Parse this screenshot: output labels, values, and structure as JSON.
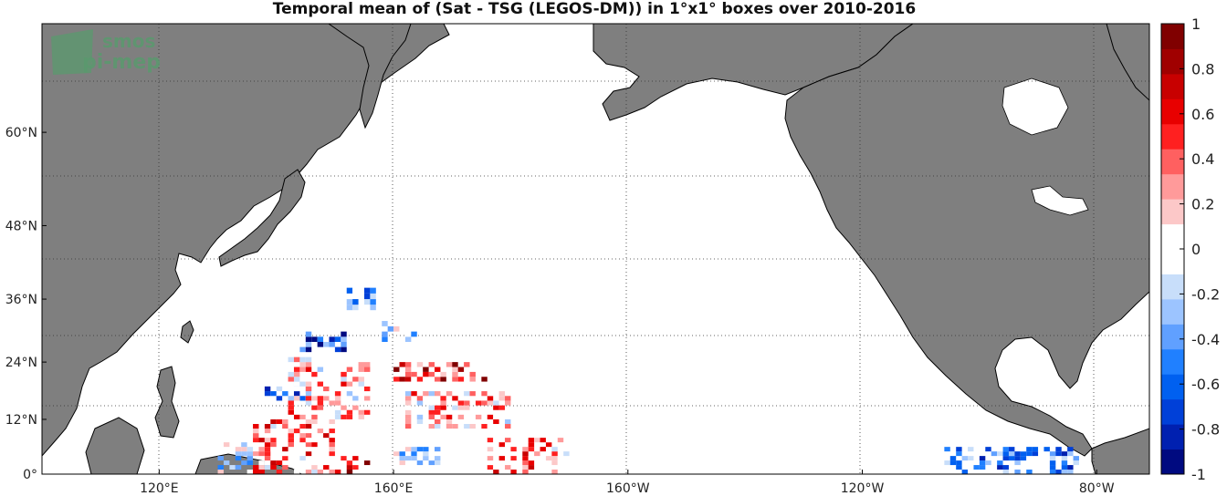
{
  "chart_data": {
    "type": "heatmap",
    "title": "Temporal mean of (Sat - TSG (LEGOS-DM)) in 1°x1° boxes over 2010-2016",
    "xlabel": "",
    "ylabel": "",
    "projection": "equirectangular, Pacific-centered",
    "xlim": [
      100,
      289
    ],
    "ylim": [
      0,
      70
    ],
    "grid": "dotted",
    "x_ticks": [
      {
        "value": 120,
        "label": "120°E"
      },
      {
        "value": 160,
        "label": "160°E"
      },
      {
        "value": 200,
        "label": "160°W"
      },
      {
        "value": 240,
        "label": "120°W"
      },
      {
        "value": 280,
        "label": "80°W"
      }
    ],
    "y_ticks": [
      {
        "value": 0,
        "label": "0°"
      },
      {
        "value": 12,
        "label": "12°N"
      },
      {
        "value": 24,
        "label": "24°N"
      },
      {
        "value": 36,
        "label": "36°N"
      },
      {
        "value": 48,
        "label": "48°N"
      },
      {
        "value": 60,
        "label": "60°N"
      }
    ],
    "colorbar": {
      "range": [
        -1,
        1
      ],
      "ticks": [
        {
          "value": 1,
          "label": "1"
        },
        {
          "value": 0.8,
          "label": "0.8"
        },
        {
          "value": 0.6,
          "label": "0.6"
        },
        {
          "value": 0.4,
          "label": "0.4"
        },
        {
          "value": 0.2,
          "label": "0.2"
        },
        {
          "value": 0,
          "label": "0"
        },
        {
          "value": -0.2,
          "label": "-0.2"
        },
        {
          "value": -0.4,
          "label": "-0.4"
        },
        {
          "value": -0.6,
          "label": "-0.6"
        },
        {
          "value": -0.8,
          "label": "-0.8"
        },
        {
          "value": -1,
          "label": "-1"
        }
      ],
      "colors": [
        "#000a80",
        "#0020b0",
        "#0040d8",
        "#0060f0",
        "#2080ff",
        "#60a0ff",
        "#9cc4ff",
        "#c8defa",
        "#ffffff",
        "#ffffff",
        "#fcc8c8",
        "#ff9a9a",
        "#ff6060",
        "#ff2020",
        "#e80000",
        "#c80000",
        "#a00000",
        "#800000"
      ]
    },
    "clusters": [
      {
        "lon": [
          130,
          136
        ],
        "lat": [
          0,
          7
        ],
        "mean": -0.2
      },
      {
        "lon": [
          136,
          150
        ],
        "lat": [
          0,
          12
        ],
        "mean": 0.3
      },
      {
        "lon": [
          138,
          146
        ],
        "lat": [
          16,
          20
        ],
        "mean": -0.4
      },
      {
        "lon": [
          142,
          156
        ],
        "lat": [
          12,
          25
        ],
        "mean": 0.2
      },
      {
        "lon": [
          144,
          152
        ],
        "lat": [
          26,
          30
        ],
        "mean": -0.7
      },
      {
        "lon": [
          152,
          158
        ],
        "lat": [
          34,
          38
        ],
        "mean": -0.3
      },
      {
        "lon": [
          158,
          164
        ],
        "lat": [
          28,
          32
        ],
        "mean": -0.3
      },
      {
        "lon": [
          160,
          176
        ],
        "lat": [
          20,
          24
        ],
        "mean": 0.5
      },
      {
        "lon": [
          162,
          180
        ],
        "lat": [
          10,
          18
        ],
        "mean": 0.2
      },
      {
        "lon": [
          150,
          156
        ],
        "lat": [
          0,
          4
        ],
        "mean": 0.5
      },
      {
        "lon": [
          160,
          168
        ],
        "lat": [
          2,
          6
        ],
        "mean": -0.3
      },
      {
        "lon": [
          176,
          190
        ],
        "lat": [
          0,
          8
        ],
        "mean": 0.3
      },
      {
        "lon": [
          254,
          277
        ],
        "lat": [
          0,
          6
        ],
        "mean": -0.4
      }
    ],
    "logo": [
      "smos",
      "pi-mep"
    ]
  }
}
